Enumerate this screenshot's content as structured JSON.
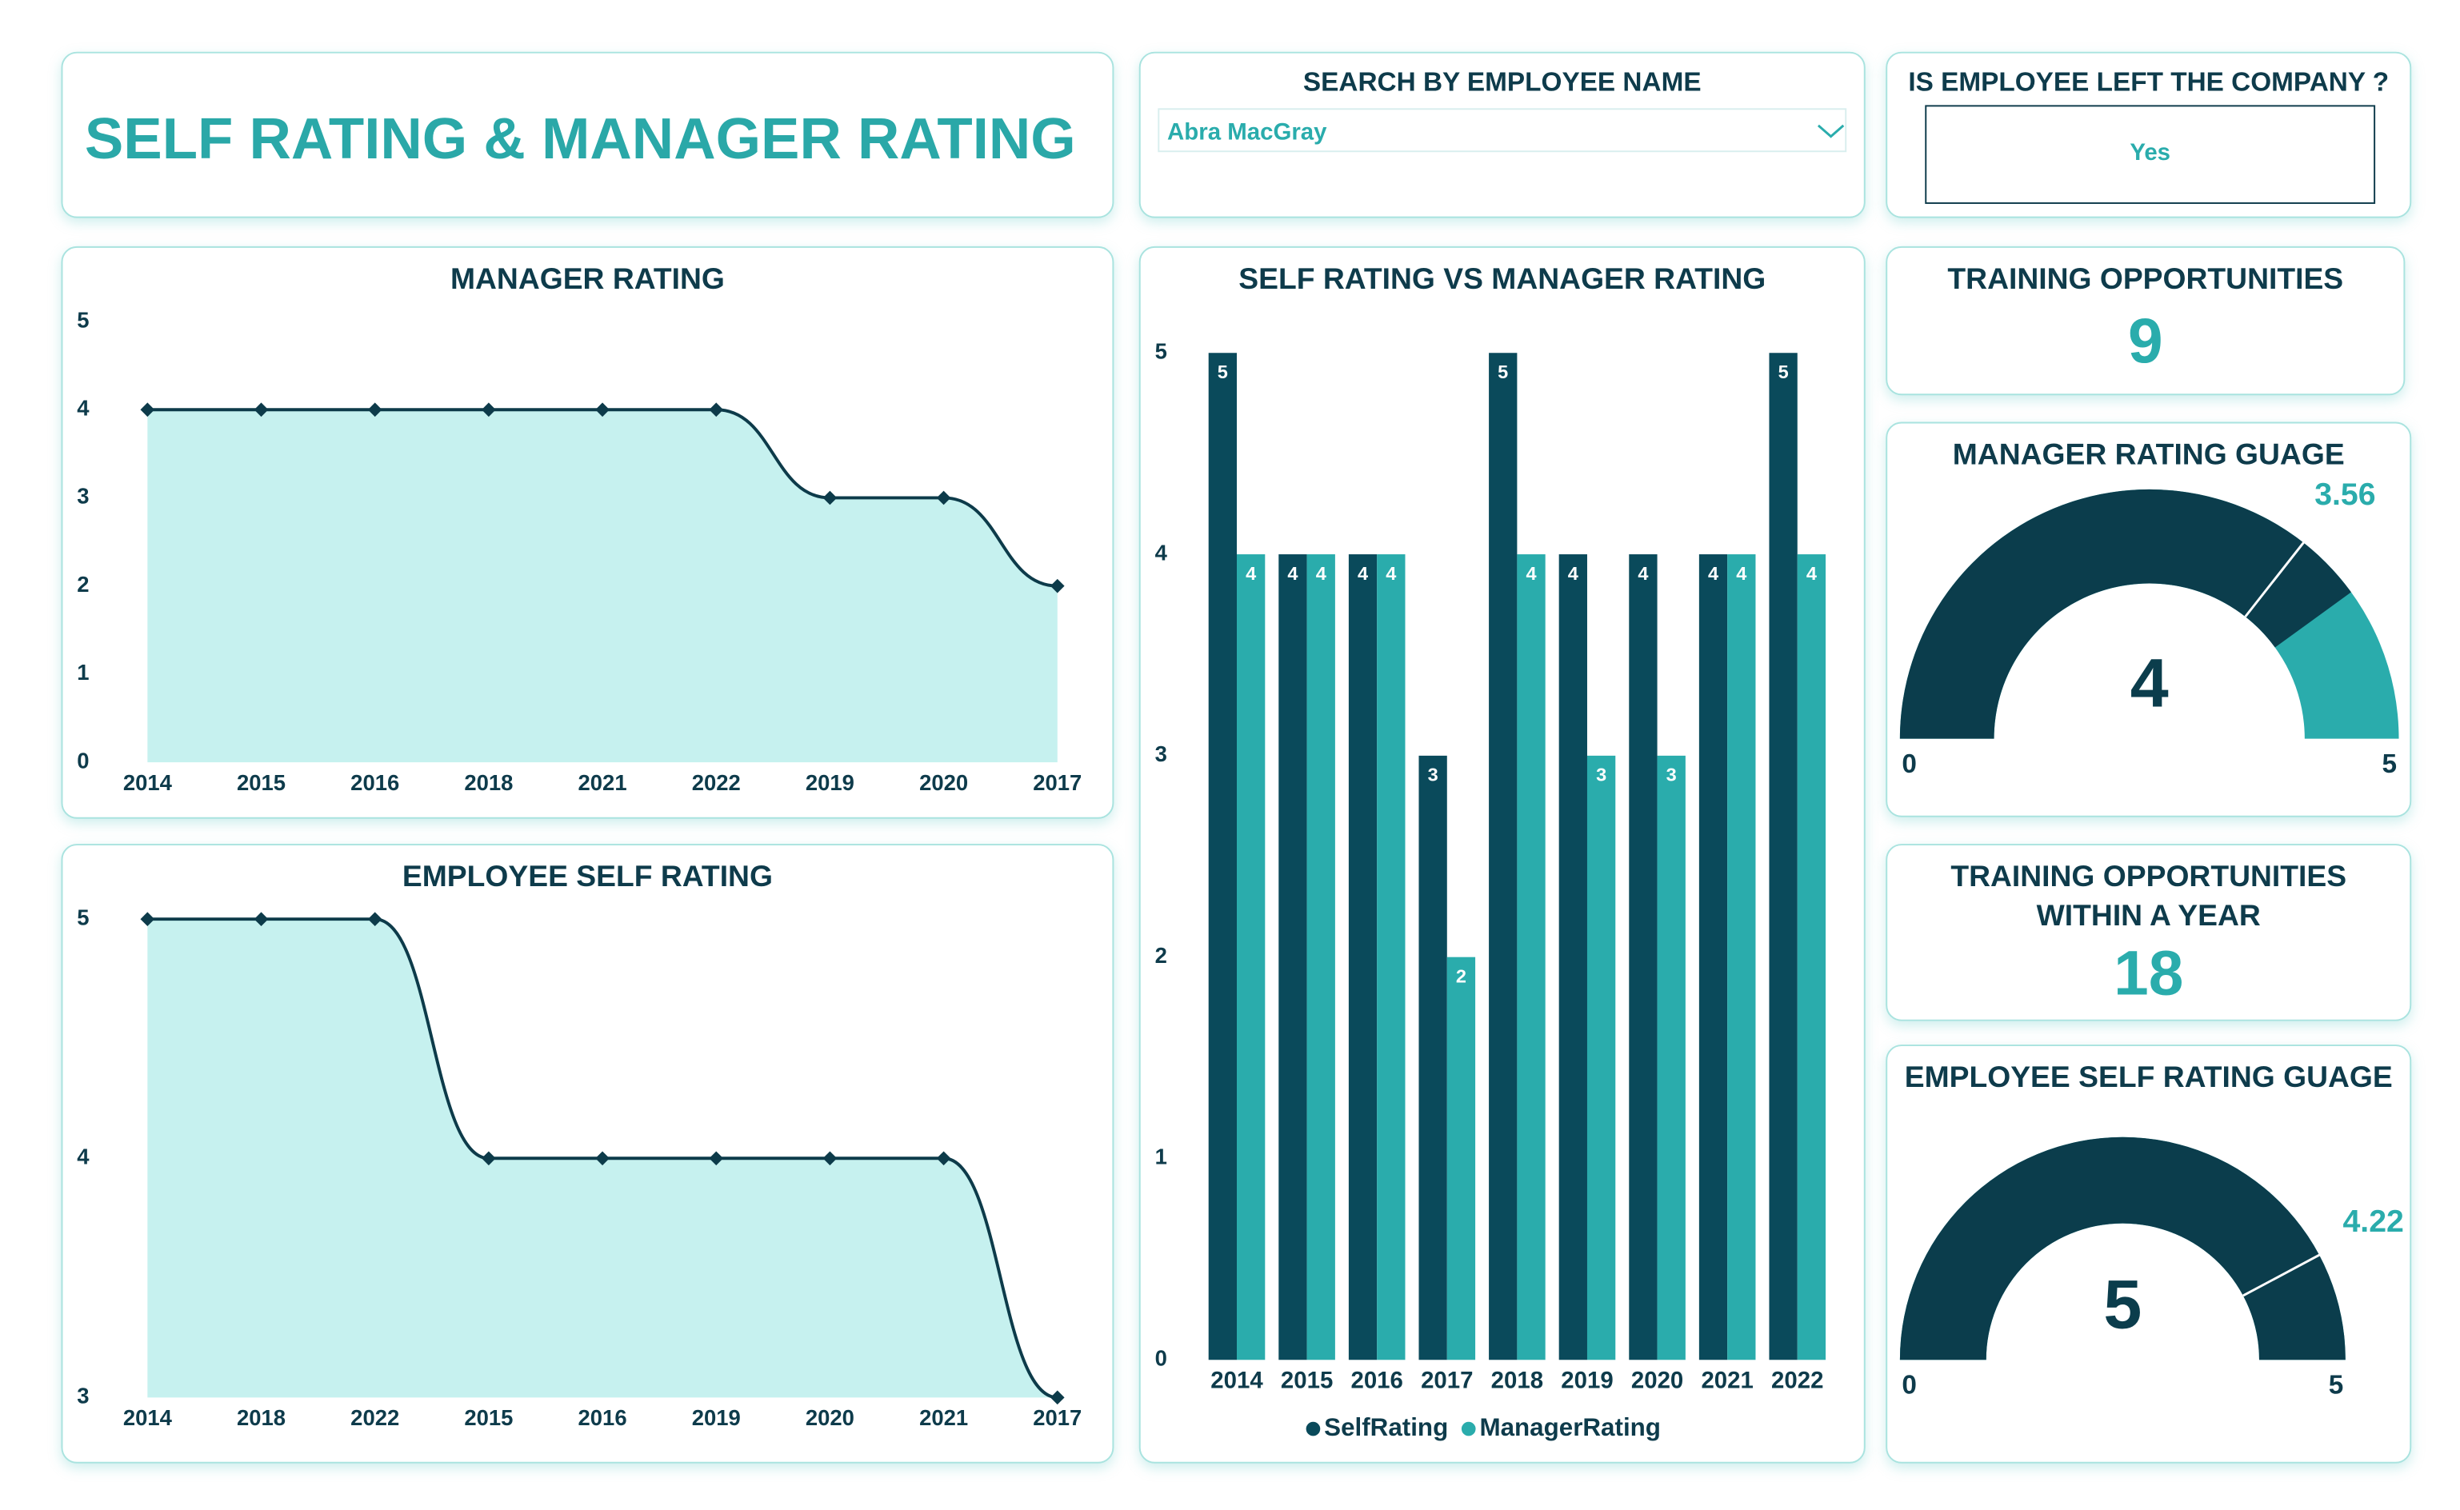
{
  "header": {
    "title": "SELF RATING & MANAGER RATING"
  },
  "search": {
    "label": "SEARCH BY EMPLOYEE NAME",
    "selected": "Abra MacGray"
  },
  "left_company": {
    "label": "IS EMPLOYEE LEFT THE COMPANY ?",
    "value": "Yes"
  },
  "cards": [
    {
      "title": "TRAINING OPPORTUNITIES",
      "value": 9
    },
    {
      "title": "TRAINING OPPORTUNITIES WITHIN A YEAR",
      "value": 18
    }
  ],
  "chart_data": [
    {
      "type": "area",
      "title": "MANAGER RATING",
      "categories": [
        "2014",
        "2015",
        "2016",
        "2018",
        "2021",
        "2022",
        "2019",
        "2020",
        "2017"
      ],
      "values": [
        4,
        4,
        4,
        4,
        4,
        4,
        3,
        3,
        2
      ],
      "color": "#0d3b4a",
      "area_color": "#c6f1ef",
      "ylim": [
        0,
        5
      ],
      "yticks": [
        0,
        1,
        2,
        3,
        4,
        5
      ],
      "grid": false
    },
    {
      "type": "area",
      "title": "EMPLOYEE SELF RATING",
      "categories": [
        "2014",
        "2018",
        "2022",
        "2015",
        "2016",
        "2019",
        "2020",
        "2021",
        "2017"
      ],
      "values": [
        5,
        5,
        5,
        4,
        4,
        4,
        4,
        4,
        3
      ],
      "color": "#0d3b4a",
      "area_color": "#c6f1ef",
      "ylim": [
        3,
        5
      ],
      "yticks": [
        3,
        4,
        5
      ],
      "grid": false
    },
    {
      "type": "bar",
      "title": "SELF RATING VS MANAGER RATING",
      "categories": [
        "2014",
        "2015",
        "2016",
        "2017",
        "2018",
        "2019",
        "2020",
        "2021",
        "2022"
      ],
      "series": [
        {
          "name": "SelfRating",
          "color": "#0a4a5b",
          "values": [
            5,
            4,
            4,
            3,
            5,
            4,
            4,
            4,
            5
          ]
        },
        {
          "name": "ManagerRating",
          "color": "#2aacac",
          "values": [
            4,
            4,
            4,
            2,
            4,
            3,
            3,
            4,
            4
          ]
        }
      ],
      "ylim": [
        0,
        5
      ],
      "yticks": [
        0,
        1,
        2,
        3,
        4,
        5
      ],
      "grid": false,
      "legend": "bottom"
    },
    {
      "type": "gauge",
      "title": "MANAGER RATING GUAGE",
      "value": 4,
      "target": 3.56,
      "min": 0,
      "max": 5,
      "color": "#0b3d4c",
      "track_color": "#2aacac"
    },
    {
      "type": "gauge",
      "title": "EMPLOYEE SELF RATING GUAGE",
      "value": 5,
      "target": 4.22,
      "min": 0,
      "max": 5,
      "color": "#0b3d4c",
      "track_color": "#2aacac"
    }
  ]
}
